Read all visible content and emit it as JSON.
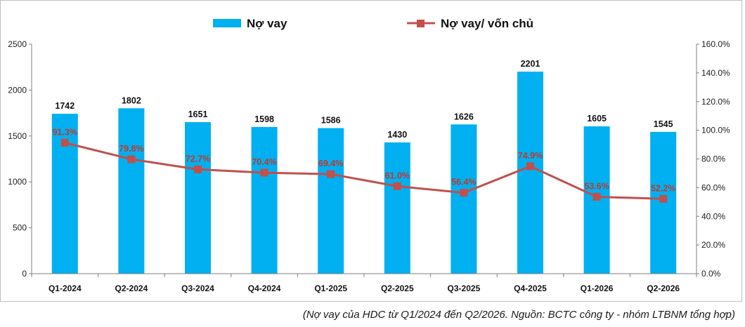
{
  "chart_data": {
    "type": "bar+line",
    "categories": [
      "Q1-2024",
      "Q2-2024",
      "Q3-2024",
      "Q4-2024",
      "Q1-2025",
      "Q2-2025",
      "Q3-2025",
      "Q4-2025",
      "Q1-2026",
      "Q2-2026"
    ],
    "series": [
      {
        "name": "Nợ vay",
        "type": "bar",
        "axis": "left",
        "color": "#00b0f0",
        "values": [
          1742,
          1802,
          1651,
          1598,
          1586,
          1430,
          1626,
          2201,
          1605,
          1545
        ],
        "labels": [
          "1742",
          "1802",
          "1651",
          "1598",
          "1586",
          "1430",
          "1626",
          "2201",
          "1605",
          "1545"
        ]
      },
      {
        "name": "Nợ vay/ vốn chủ",
        "type": "line",
        "axis": "right",
        "color": "#c0504d",
        "values": [
          91.3,
          79.8,
          72.7,
          70.4,
          69.4,
          61.0,
          56.4,
          74.9,
          53.6,
          52.2
        ],
        "labels": [
          "91.3%",
          "79.8%",
          "72.7%",
          "70.4%",
          "69.4%",
          "61.0%",
          "56.4%",
          "74.9%",
          "53.6%",
          "52.2%"
        ]
      }
    ],
    "y_left": {
      "range": [
        0,
        2500
      ],
      "ticks": [
        "0",
        "500",
        "1000",
        "1500",
        "2000",
        "2500"
      ]
    },
    "y_right": {
      "range": [
        0,
        160
      ],
      "ticks": [
        "0.0%",
        "20.0%",
        "40.0%",
        "60.0%",
        "80.0%",
        "100.0%",
        "120.0%",
        "140.0%",
        "160.0%"
      ]
    },
    "grid": false,
    "legend_position": "top-center"
  },
  "caption": "(Nợ vay của HDC từ Q1/2024 đến Q2/2026. Nguồn: BCTC công ty - nhóm LTBNM tổng hợp)"
}
